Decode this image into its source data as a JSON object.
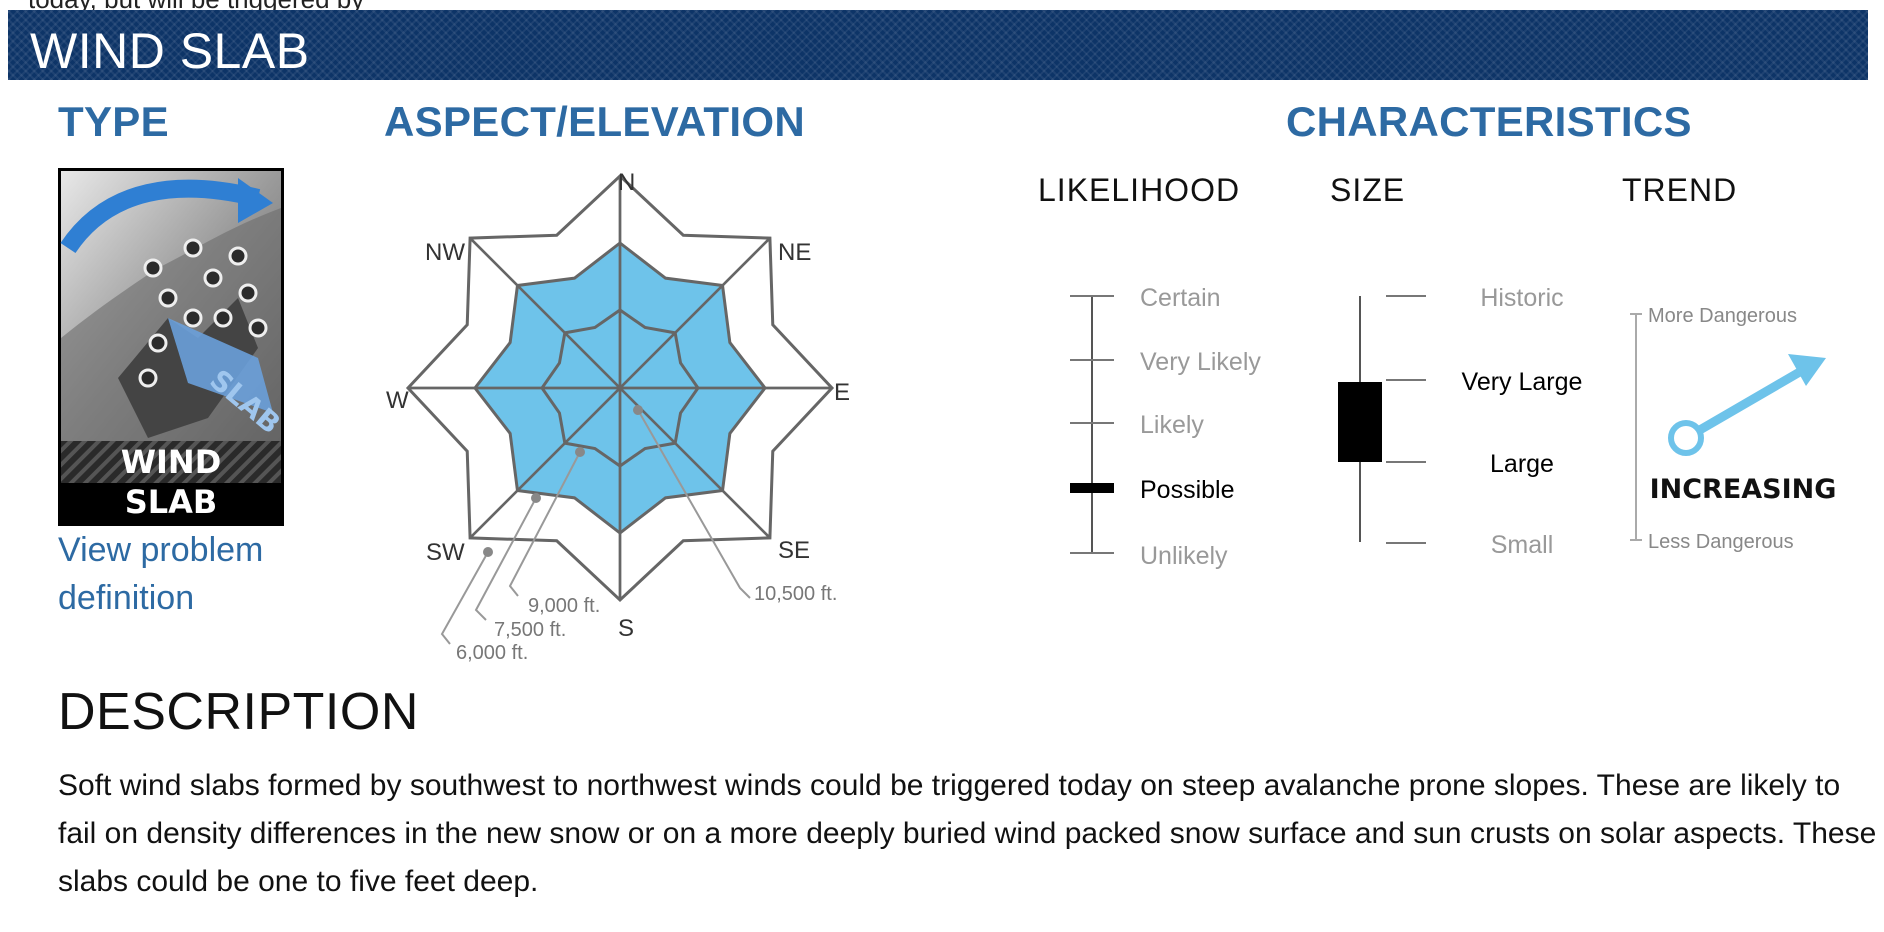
{
  "top_text": "today, but will be triggered by",
  "banner": {
    "title": "WIND SLAB"
  },
  "sections": {
    "type": "TYPE",
    "aspect": "ASPECT/ELEVATION",
    "characteristics": "CHARACTERISTICS"
  },
  "type_icon": {
    "name": "wind-slab-icon",
    "line1": "WIND",
    "line2": "SLAB",
    "tag": "SLAB"
  },
  "view_problem_link": "View problem definition",
  "rose": {
    "directions": [
      "N",
      "NE",
      "E",
      "SE",
      "S",
      "SW",
      "W",
      "NW"
    ],
    "elevations": [
      "10,500 ft.",
      "9,000 ft.",
      "7,500 ft.",
      "6,000 ft."
    ],
    "fill_color": "#6ec3ea",
    "highlighted_bands": [
      "9,000 ft.",
      "7,500 ft."
    ]
  },
  "columns": {
    "likelihood": "LIKELIHOOD",
    "size": "SIZE",
    "trend": "TREND"
  },
  "likelihood": {
    "levels": [
      "Certain",
      "Very Likely",
      "Likely",
      "Possible",
      "Unlikely"
    ],
    "selected": "Possible"
  },
  "size": {
    "levels": [
      "Historic",
      "Very Large",
      "Large",
      "Small"
    ],
    "selected": [
      "Very Large",
      "Large"
    ]
  },
  "trend": {
    "top_label": "More Dangerous",
    "bottom_label": "Less Dangerous",
    "value": "INCREASING",
    "arrow_color": "#6ec3ea",
    "icon": "trend-arrow-up-right-icon"
  },
  "description": {
    "heading": "DESCRIPTION",
    "text": "Soft wind slabs formed by southwest to northwest winds could be triggered today on steep avalanche prone slopes. These are likely to fail on density differences in the new snow or on a more deeply buried wind packed snow surface and sun crusts on solar aspects. These slabs could be one to five feet deep."
  }
}
